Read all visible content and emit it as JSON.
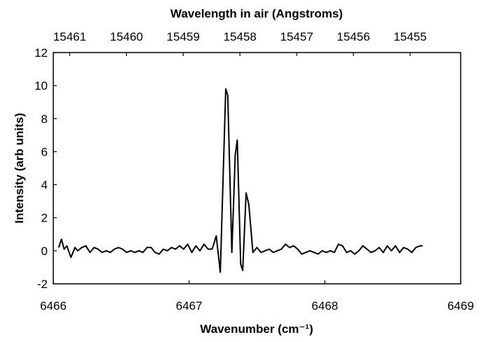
{
  "chart_data": {
    "type": "line",
    "x_label": "Wavenumber (cm⁻¹)",
    "x2_label": "Wavelength in air (Angstroms)",
    "y_label": "Intensity (arb units)",
    "xlim": [
      6466,
      6469
    ],
    "xticks": [
      6466,
      6467,
      6468,
      6469
    ],
    "x2lim": [
      15461.29,
      15454.11
    ],
    "x2ticks": [
      15461,
      15460,
      15459,
      15458,
      15457,
      15456,
      15455
    ],
    "ylim": [
      -2,
      12
    ],
    "yticks": [
      -2,
      0,
      2,
      4,
      6,
      8,
      10,
      12
    ],
    "grid": false,
    "series": [
      {
        "color": "#000000",
        "x": [
          6466.04,
          6466.06,
          6466.08,
          6466.1,
          6466.13,
          6466.16,
          6466.18,
          6466.21,
          6466.24,
          6466.27,
          6466.3,
          6466.33,
          6466.36,
          6466.39,
          6466.42,
          6466.45,
          6466.48,
          6466.51,
          6466.54,
          6466.57,
          6466.6,
          6466.63,
          6466.66,
          6466.69,
          6466.72,
          6466.75,
          6466.78,
          6466.81,
          6466.84,
          6466.87,
          6466.9,
          6466.93,
          6466.96,
          6466.99,
          6467.02,
          6467.05,
          6467.08,
          6467.11,
          6467.14,
          6467.17,
          6467.2,
          6467.23,
          6467.27,
          6467.285,
          6467.315,
          6467.34,
          6467.355,
          6467.38,
          6467.395,
          6467.42,
          6467.44,
          6467.47,
          6467.5,
          6467.53,
          6467.56,
          6467.59,
          6467.62,
          6467.65,
          6467.68,
          6467.71,
          6467.74,
          6467.77,
          6467.8,
          6467.83,
          6467.86,
          6467.89,
          6467.92,
          6467.95,
          6467.98,
          6468.01,
          6468.04,
          6468.07,
          6468.1,
          6468.13,
          6468.16,
          6468.19,
          6468.22,
          6468.25,
          6468.28,
          6468.31,
          6468.34,
          6468.37,
          6468.4,
          6468.43,
          6468.46,
          6468.49,
          6468.52,
          6468.55,
          6468.58,
          6468.61,
          6468.64,
          6468.67,
          6468.7,
          6468.72
        ],
        "values": [
          0.2,
          0.7,
          0.1,
          0.3,
          -0.4,
          0.2,
          0.0,
          0.2,
          0.3,
          -0.1,
          0.2,
          0.1,
          -0.1,
          0.0,
          -0.1,
          0.1,
          0.2,
          0.1,
          -0.1,
          0.0,
          -0.1,
          0.0,
          -0.1,
          0.2,
          0.2,
          -0.1,
          -0.2,
          0.1,
          0.0,
          0.2,
          0.1,
          0.3,
          0.1,
          0.4,
          -0.1,
          0.3,
          0.0,
          0.4,
          0.1,
          0.1,
          0.9,
          -1.3,
          9.8,
          9.4,
          -0.1,
          5.8,
          6.7,
          -0.8,
          -1.2,
          3.5,
          2.8,
          -0.1,
          0.2,
          -0.1,
          0.0,
          0.1,
          -0.1,
          0.0,
          0.1,
          0.4,
          0.2,
          0.3,
          0.1,
          -0.2,
          -0.1,
          0.0,
          -0.1,
          -0.2,
          0.0,
          -0.1,
          0.0,
          -0.1,
          0.4,
          0.3,
          -0.1,
          0.0,
          -0.2,
          0.0,
          0.3,
          0.1,
          -0.1,
          0.0,
          0.2,
          -0.1,
          0.3,
          0.0,
          0.3,
          -0.1,
          0.2,
          0.1,
          -0.1,
          0.2,
          0.3,
          0.3
        ]
      }
    ]
  }
}
